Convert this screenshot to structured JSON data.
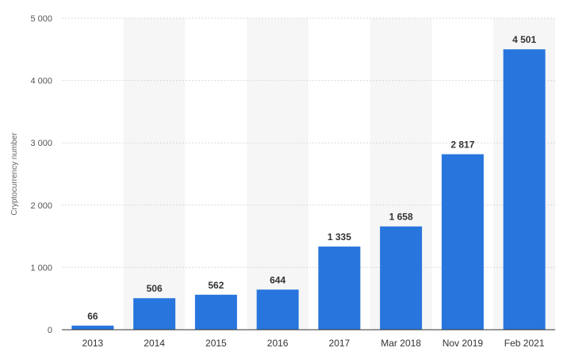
{
  "chart_data": {
    "type": "bar",
    "title": "",
    "xlabel": "",
    "ylabel": "Cryptocurrency number",
    "categories": [
      "2013",
      "2014",
      "2015",
      "2016",
      "2017",
      "Mar 2018",
      "Nov 2019",
      "Feb 2021"
    ],
    "values": [
      66,
      506,
      562,
      644,
      1335,
      1658,
      2817,
      4501
    ],
    "value_labels": [
      "66",
      "506",
      "562",
      "644",
      "1 335",
      "1 658",
      "2 817",
      "4 501"
    ],
    "ylim": [
      0,
      5000
    ],
    "yticks": [
      0,
      1000,
      2000,
      3000,
      4000,
      5000
    ],
    "ytick_labels": [
      "0",
      "1 000",
      "2 000",
      "3 000",
      "4 000",
      "5 000"
    ],
    "grid": true,
    "legend": "none",
    "bar_color": "#2876dd"
  }
}
